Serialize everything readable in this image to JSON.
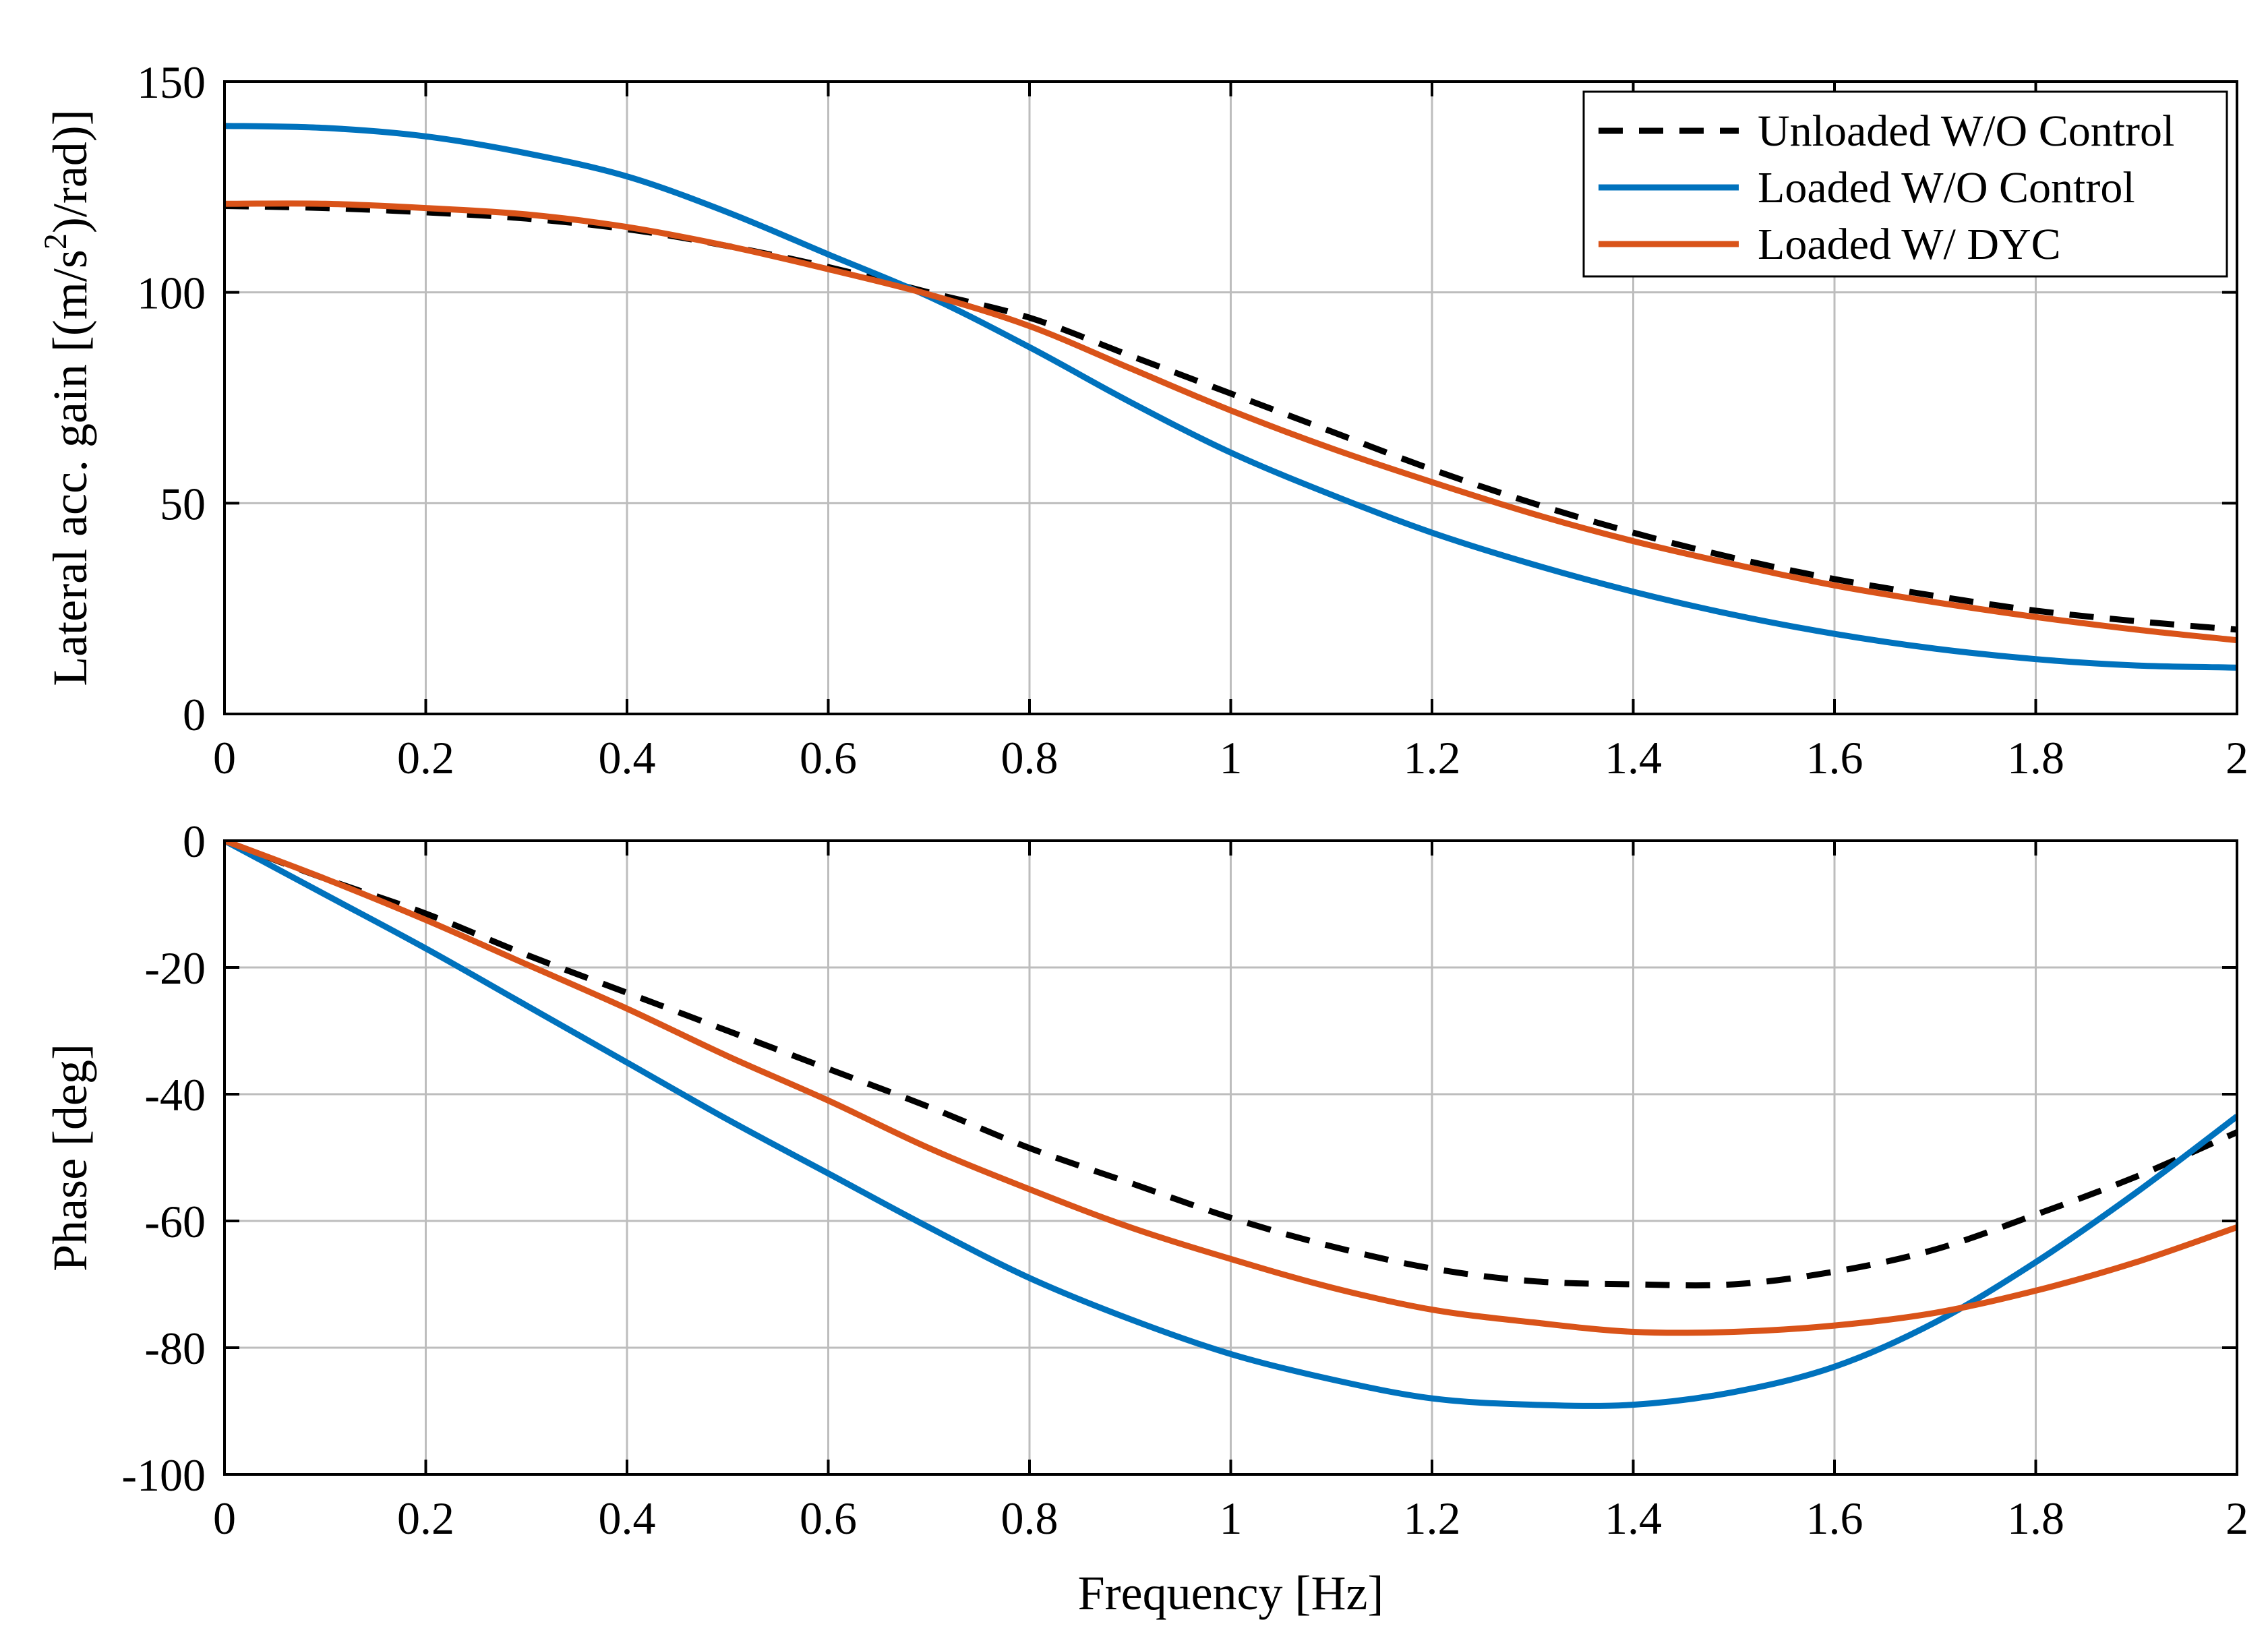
{
  "chart_data": [
    {
      "id": "gain",
      "type": "line",
      "ylabel_parts": [
        "Lateral acc. gain [(m/s",
        "2",
        ")/rad)]"
      ],
      "xlabel": "",
      "xlim": [
        0,
        2
      ],
      "ylim": [
        0,
        150
      ],
      "grid": true,
      "x_ticks": [
        0,
        0.2,
        0.4,
        0.6,
        0.8,
        1,
        1.2,
        1.4,
        1.6,
        1.8,
        2
      ],
      "x_tick_labels": [
        "0",
        "0.2",
        "0.4",
        "0.6",
        "0.8",
        "1",
        "1.2",
        "1.4",
        "1.6",
        "1.8",
        "2"
      ],
      "y_ticks": [
        0,
        50,
        100,
        150
      ],
      "y_tick_labels": [
        "0",
        "50",
        "100",
        "150"
      ],
      "legend": {
        "position": "top-right",
        "entries": [
          "Unloaded W/O Control",
          "Loaded W/O Control",
          "Loaded W/ DYC"
        ]
      },
      "x": [
        0,
        0.1,
        0.2,
        0.3,
        0.4,
        0.5,
        0.6,
        0.7,
        0.8,
        0.9,
        1.0,
        1.1,
        1.2,
        1.3,
        1.4,
        1.5,
        1.6,
        1.7,
        1.8,
        1.9,
        2.0
      ],
      "series": [
        {
          "name": "Unloaded W/O Control",
          "color": "#000000",
          "dash": true,
          "values": [
            120.5,
            120,
            119,
            117.5,
            115,
            111,
            106,
            100,
            94,
            85,
            76,
            67,
            58,
            50,
            43,
            37,
            32,
            28,
            24.5,
            22,
            20
          ]
        },
        {
          "name": "Loaded W/O Control",
          "color": "#0072BD",
          "dash": false,
          "values": [
            139.5,
            139,
            137,
            133,
            127.5,
            119,
            109,
            99,
            87,
            74,
            62,
            52,
            43,
            35.5,
            29,
            23.5,
            19,
            15.5,
            13,
            11.5,
            11
          ]
        },
        {
          "name": "Loaded W/ DYC",
          "color": "#D95319",
          "dash": false,
          "values": [
            121,
            121,
            120,
            118.5,
            115.5,
            111,
            105.5,
            99.5,
            92,
            82,
            72,
            63,
            55,
            47.5,
            41,
            35.5,
            30.5,
            26.5,
            23,
            20,
            17.5
          ]
        }
      ]
    },
    {
      "id": "phase",
      "type": "line",
      "ylabel_parts": [
        "Phase [deg]"
      ],
      "xlabel": "Frequency [Hz]",
      "xlim": [
        0,
        2
      ],
      "ylim": [
        -100,
        0
      ],
      "grid": true,
      "x_ticks": [
        0,
        0.2,
        0.4,
        0.6,
        0.8,
        1,
        1.2,
        1.4,
        1.6,
        1.8,
        2
      ],
      "x_tick_labels": [
        "0",
        "0.2",
        "0.4",
        "0.6",
        "0.8",
        "1",
        "1.2",
        "1.4",
        "1.6",
        "1.8",
        "2"
      ],
      "y_ticks": [
        -100,
        -80,
        -60,
        -40,
        -20,
        0
      ],
      "y_tick_labels": [
        "-100",
        "-80",
        "-60",
        "-40",
        "-20",
        "0"
      ],
      "x": [
        0,
        0.1,
        0.2,
        0.3,
        0.4,
        0.5,
        0.6,
        0.7,
        0.8,
        0.9,
        1.0,
        1.1,
        1.2,
        1.3,
        1.4,
        1.5,
        1.6,
        1.7,
        1.8,
        1.9,
        2.0
      ],
      "series": [
        {
          "name": "Unloaded W/O Control",
          "color": "#000000",
          "dash": true,
          "values": [
            0,
            -6,
            -11.5,
            -18,
            -24,
            -30,
            -36,
            -42,
            -48.5,
            -54,
            -59.5,
            -64,
            -67.5,
            -69.5,
            -70,
            -70,
            -68,
            -64.5,
            -59,
            -53,
            -46
          ]
        },
        {
          "name": "Loaded W/O Control",
          "color": "#0072BD",
          "dash": false,
          "values": [
            0,
            -8.5,
            -17,
            -26,
            -35,
            -44,
            -52.5,
            -61,
            -69,
            -75.5,
            -81,
            -85,
            -88,
            -89,
            -89,
            -87,
            -83,
            -76,
            -66.5,
            -55.5,
            -43.5
          ]
        },
        {
          "name": "Loaded W/ DYC",
          "color": "#D95319",
          "dash": false,
          "values": [
            0,
            -6,
            -12.5,
            -19.5,
            -26.5,
            -34,
            -41,
            -48.5,
            -55,
            -61,
            -66,
            -70.5,
            -74,
            -76,
            -77.5,
            -77.5,
            -76.5,
            -74.5,
            -71,
            -66.5,
            -61
          ]
        }
      ]
    }
  ]
}
